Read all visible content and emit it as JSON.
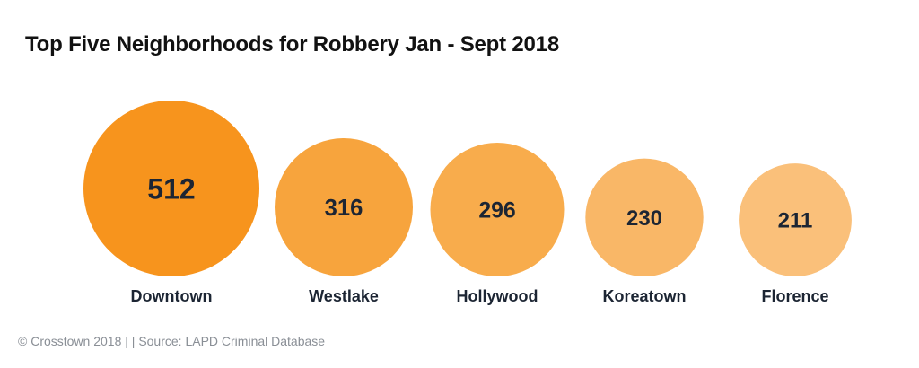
{
  "chart_data": {
    "type": "bubble",
    "title": "Top Five Neighborhoods for Robbery Jan - Sept 2018",
    "categories": [
      "Downtown",
      "Westlake",
      "Hollywood",
      "Koreatown",
      "Florence"
    ],
    "values": [
      512,
      316,
      296,
      230,
      211
    ],
    "colors": [
      "#f7941d",
      "#f7a43d",
      "#f8ac4c",
      "#f9b767",
      "#fac07a"
    ],
    "legend": "none",
    "grid": false
  },
  "footer": {
    "source": "© Crosstown 2018 | | Source: LAPD Criminal Database"
  }
}
